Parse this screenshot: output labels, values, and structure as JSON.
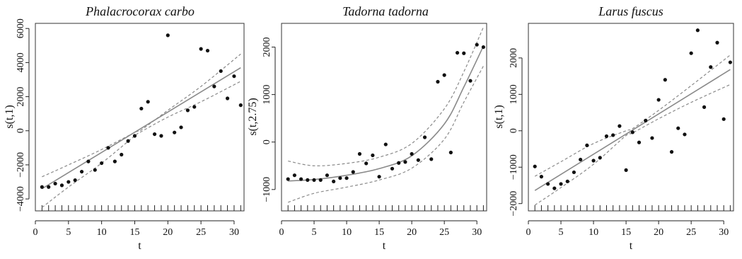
{
  "chart_data": [
    {
      "type": "scatter",
      "title": "Phalacrocorax carbo",
      "xlabel": "t",
      "ylabel": "s(t,1)",
      "xlim": [
        0,
        31.5
      ],
      "ylim": [
        -4700,
        6300
      ],
      "xticks": [
        0,
        5,
        10,
        15,
        20,
        25,
        30
      ],
      "yticks": [
        -4000,
        -2000,
        0,
        2000,
        4000,
        6000
      ],
      "ytick_labels": [
        "−4000",
        "−2000",
        "0",
        "2000",
        "4000",
        "6000"
      ],
      "grid": false,
      "points": {
        "x": [
          1,
          2,
          3,
          4,
          5,
          6,
          7,
          8,
          9,
          10,
          11,
          12,
          13,
          14,
          15,
          16,
          17,
          18,
          19,
          20,
          21,
          22,
          23,
          24,
          25,
          26,
          27,
          28,
          29,
          30,
          31
        ],
        "y": [
          -3300,
          -3300,
          -3100,
          -3200,
          -3000,
          -2900,
          -2400,
          -1800,
          -2300,
          -1900,
          -1000,
          -1800,
          -1400,
          -600,
          -300,
          1300,
          1700,
          -200,
          -300,
          5600,
          -100,
          200,
          1200,
          1400,
          4800,
          4700,
          2600,
          3500,
          1900,
          3200,
          1500
        ]
      },
      "fit": {
        "x": [
          1,
          31
        ],
        "y": [
          -3400,
          3700
        ]
      },
      "band_upper": {
        "x": [
          1,
          5,
          10,
          15,
          16,
          20,
          25,
          31
        ],
        "y": [
          -2700,
          -2000,
          -1100,
          -100,
          50,
          1200,
          2600,
          4500
        ]
      },
      "band_lower": {
        "x": [
          1,
          5,
          10,
          15,
          16,
          20,
          25,
          31
        ],
        "y": [
          -4500,
          -3300,
          -1900,
          -300,
          -50,
          800,
          1700,
          2900
        ]
      },
      "rug_x": [
        1,
        2,
        3,
        4,
        5,
        6,
        7,
        8,
        9,
        10,
        11,
        12,
        13,
        14,
        15,
        16,
        17,
        18,
        19,
        20,
        21,
        22,
        23,
        24,
        25,
        26,
        27,
        28,
        29,
        30,
        31
      ]
    },
    {
      "type": "scatter",
      "title": "Tadorna tadorna",
      "xlabel": "t",
      "ylabel": "s(t,2.75)",
      "xlim": [
        0,
        31.5
      ],
      "ylim": [
        -1450,
        2500
      ],
      "xticks": [
        0,
        5,
        10,
        15,
        20,
        25,
        30
      ],
      "yticks": [
        -1000,
        0,
        1000,
        2000
      ],
      "ytick_labels": [
        "−1000",
        "0",
        "1000",
        "2000"
      ],
      "grid": false,
      "points": {
        "x": [
          1,
          2,
          3,
          4,
          5,
          6,
          7,
          8,
          9,
          10,
          11,
          12,
          13,
          14,
          15,
          16,
          17,
          18,
          19,
          20,
          21,
          22,
          23,
          24,
          25,
          26,
          27,
          28,
          29,
          30,
          31
        ],
        "y": [
          -780,
          -700,
          -780,
          -800,
          -800,
          -800,
          -700,
          -830,
          -760,
          -760,
          -630,
          -250,
          -450,
          -280,
          -730,
          -50,
          -560,
          -440,
          -420,
          -250,
          -380,
          100,
          -360,
          1270,
          1410,
          -220,
          1880,
          1870,
          1290,
          2050,
          2000
        ]
      },
      "fit": {
        "x": [
          1,
          5,
          10,
          15,
          20,
          25,
          28,
          31
        ],
        "y": [
          -820,
          -790,
          -700,
          -560,
          -290,
          380,
          1160,
          2020
        ]
      },
      "band_upper": {
        "x": [
          1,
          5,
          10,
          15,
          20,
          25,
          28,
          31
        ],
        "y": [
          -400,
          -500,
          -450,
          -320,
          -30,
          700,
          1480,
          2420
        ]
      },
      "band_lower": {
        "x": [
          1,
          5,
          10,
          15,
          20,
          25,
          28,
          31
        ],
        "y": [
          -1270,
          -1080,
          -950,
          -800,
          -550,
          60,
          840,
          1600
        ]
      },
      "rug_x": [
        1,
        2,
        3,
        4,
        5,
        6,
        7,
        8,
        9,
        10,
        11,
        12,
        13,
        14,
        15,
        16,
        17,
        18,
        19,
        20,
        21,
        22,
        23,
        24,
        25,
        26,
        27,
        28,
        29,
        30,
        31
      ]
    },
    {
      "type": "scatter",
      "title": "Larus fuscus",
      "xlabel": "t",
      "ylabel": "s(t,1)",
      "xlim": [
        0,
        31.5
      ],
      "ylim": [
        -2200,
        2950
      ],
      "xticks": [
        0,
        5,
        10,
        15,
        20,
        25,
        30
      ],
      "yticks": [
        -2000,
        -1000,
        0,
        1000,
        2000
      ],
      "ytick_labels": [
        "−2000",
        "−1000",
        "0",
        "1000",
        "2000"
      ],
      "grid": false,
      "points": {
        "x": [
          1,
          2,
          3,
          4,
          5,
          6,
          7,
          8,
          9,
          10,
          11,
          12,
          13,
          14,
          15,
          16,
          17,
          18,
          19,
          20,
          21,
          22,
          23,
          24,
          25,
          26,
          27,
          28,
          29,
          30,
          31
        ],
        "y": [
          -980,
          -1260,
          -1460,
          -1580,
          -1460,
          -1390,
          -1140,
          -790,
          -400,
          -820,
          -740,
          -150,
          -120,
          130,
          -1080,
          -40,
          -320,
          280,
          -200,
          850,
          1400,
          -580,
          70,
          -100,
          2130,
          2760,
          650,
          1750,
          2420,
          320,
          1880
        ]
      },
      "fit": {
        "x": [
          1,
          31
        ],
        "y": [
          -1640,
          1680
        ]
      },
      "band_upper": {
        "x": [
          1,
          5,
          10,
          15,
          16,
          20,
          25,
          31
        ],
        "y": [
          -1250,
          -850,
          -350,
          0,
          60,
          560,
          1240,
          2080
        ]
      },
      "band_lower": {
        "x": [
          1,
          5,
          10,
          15,
          16,
          20,
          25,
          31
        ],
        "y": [
          -2040,
          -1560,
          -920,
          -130,
          -60,
          330,
          780,
          1270
        ]
      },
      "rug_x": [
        1,
        2,
        3,
        4,
        5,
        6,
        7,
        8,
        9,
        10,
        11,
        12,
        13,
        14,
        15,
        16,
        17,
        18,
        19,
        20,
        21,
        22,
        23,
        24,
        25,
        26,
        27,
        28,
        29,
        30,
        31
      ]
    }
  ]
}
